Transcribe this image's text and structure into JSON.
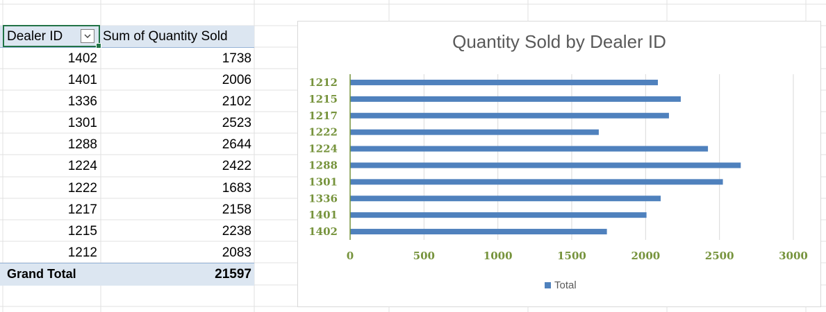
{
  "pivot": {
    "header": {
      "row_label": "Dealer ID",
      "value_label": "Sum of Quantity Sold"
    },
    "rows": [
      {
        "dealer_id": "1402",
        "quantity": "1738"
      },
      {
        "dealer_id": "1401",
        "quantity": "2006"
      },
      {
        "dealer_id": "1336",
        "quantity": "2102"
      },
      {
        "dealer_id": "1301",
        "quantity": "2523"
      },
      {
        "dealer_id": "1288",
        "quantity": "2644"
      },
      {
        "dealer_id": "1224",
        "quantity": "2422"
      },
      {
        "dealer_id": "1222",
        "quantity": "1683"
      },
      {
        "dealer_id": "1217",
        "quantity": "2158"
      },
      {
        "dealer_id": "1215",
        "quantity": "2238"
      },
      {
        "dealer_id": "1212",
        "quantity": "2083"
      }
    ],
    "grand_total": {
      "label": "Grand Total",
      "value": "21597"
    },
    "filter_icon": "chevron-down-icon"
  },
  "chart_data": {
    "type": "bar",
    "orientation": "horizontal",
    "title": "Quantity Sold by Dealer ID",
    "categories": [
      "1212",
      "1215",
      "1217",
      "1222",
      "1224",
      "1288",
      "1301",
      "1336",
      "1401",
      "1402"
    ],
    "series": [
      {
        "name": "Total",
        "values": [
          2083,
          2238,
          2158,
          1683,
          2422,
          2644,
          2523,
          2102,
          2006,
          1738
        ]
      }
    ],
    "xlim": [
      0,
      3000
    ],
    "xticks": [
      "0",
      "500",
      "1000",
      "1500",
      "2000",
      "2500",
      "3000"
    ],
    "grid": true,
    "legend": "bottom",
    "colors": {
      "bar": "#4f81bd",
      "axis_labels": "#76933c",
      "gridline": "#d9d9d9",
      "title": "#595959"
    }
  }
}
